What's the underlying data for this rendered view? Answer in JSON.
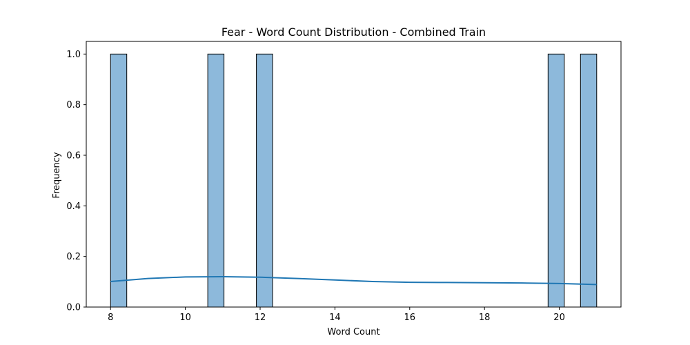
{
  "chart_data": {
    "type": "bar",
    "title": "Fear - Word Count Distribution - Combined Train",
    "xlabel": "Word Count",
    "ylabel": "Frequency",
    "xlim": [
      7.35,
      21.65
    ],
    "ylim": [
      0,
      1.05
    ],
    "x_ticks": [
      8,
      10,
      12,
      14,
      16,
      18,
      20
    ],
    "y_ticks": [
      0.0,
      0.2,
      0.4,
      0.6,
      0.8,
      1.0
    ],
    "x_tick_labels": [
      "8",
      "10",
      "12",
      "14",
      "16",
      "18",
      "20"
    ],
    "y_tick_labels": [
      "0.0",
      "0.2",
      "0.4",
      "0.6",
      "0.8",
      "1.0"
    ],
    "bar_width": 0.4333,
    "bars": [
      {
        "x_start": 8.0,
        "value": 1
      },
      {
        "x_start": 10.6,
        "value": 1
      },
      {
        "x_start": 11.9,
        "value": 1
      },
      {
        "x_start": 19.7,
        "value": 1
      },
      {
        "x_start": 20.567,
        "value": 1
      }
    ],
    "kde": {
      "name": "KDE",
      "x": [
        8,
        9,
        10,
        11,
        12,
        13,
        14,
        15,
        16,
        17,
        18,
        19,
        20,
        21
      ],
      "y": [
        0.101,
        0.113,
        0.119,
        0.12,
        0.118,
        0.113,
        0.107,
        0.101,
        0.098,
        0.097,
        0.096,
        0.095,
        0.093,
        0.089
      ]
    },
    "colors": {
      "bar_fill": "#8db9db",
      "bar_edge": "#000000",
      "kde_line": "#1f77b4"
    },
    "grid": false
  }
}
